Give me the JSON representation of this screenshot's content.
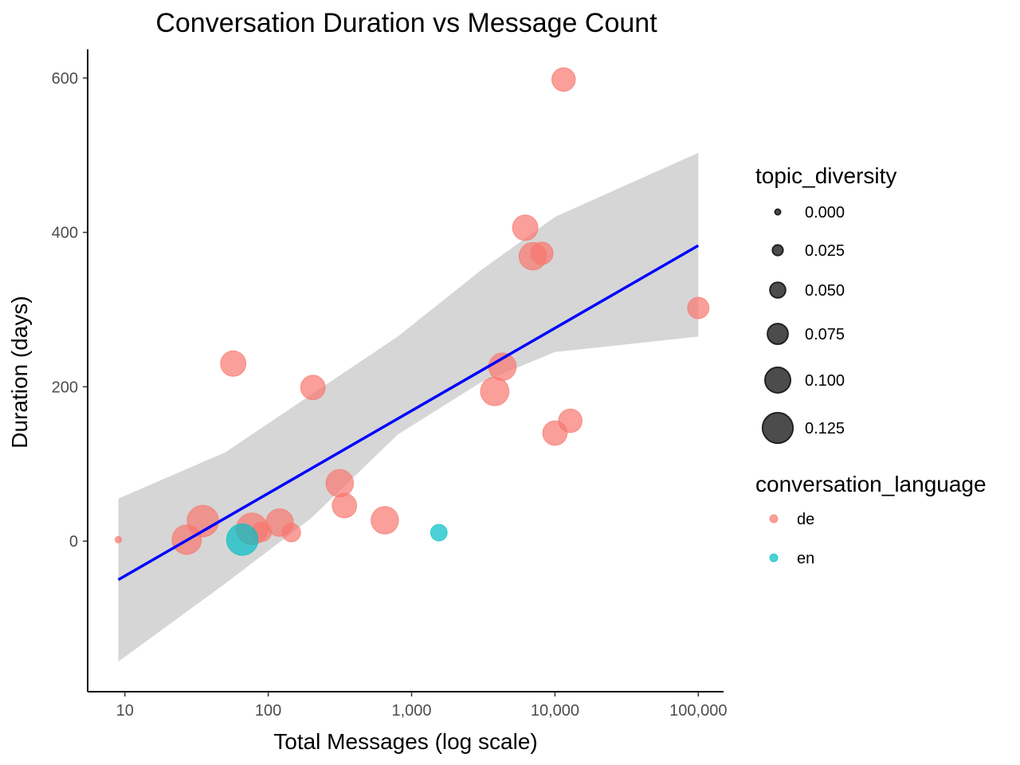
{
  "chart_data": {
    "type": "scatter",
    "title": "Conversation Duration vs Message Count",
    "xlabel": "Total Messages (log scale)",
    "ylabel": "Duration (days)",
    "x_scale": "log10",
    "xlim": [
      5.5,
      150000
    ],
    "ylim": [
      -195,
      637
    ],
    "x_ticks": [
      {
        "value": 10,
        "label": "10"
      },
      {
        "value": 100,
        "label": "100"
      },
      {
        "value": 1000,
        "label": "1,000"
      },
      {
        "value": 10000,
        "label": "10,000"
      },
      {
        "value": 100000,
        "label": "100,000"
      }
    ],
    "y_ticks": [
      {
        "value": 0,
        "label": "0"
      },
      {
        "value": 200,
        "label": "200"
      },
      {
        "value": 400,
        "label": "400"
      },
      {
        "value": 600,
        "label": "600"
      }
    ],
    "grid": false,
    "series": [
      {
        "name": "de",
        "color": "#F8766D",
        "points": [
          {
            "x": 9,
            "y": 2,
            "topic_diversity": 0.005
          },
          {
            "x": 27,
            "y": 2,
            "topic_diversity": 0.12
          },
          {
            "x": 35,
            "y": 26,
            "topic_diversity": 0.13
          },
          {
            "x": 57,
            "y": 230,
            "topic_diversity": 0.1
          },
          {
            "x": 77,
            "y": 16,
            "topic_diversity": 0.13
          },
          {
            "x": 90,
            "y": 12,
            "topic_diversity": 0.07
          },
          {
            "x": 120,
            "y": 24,
            "topic_diversity": 0.11
          },
          {
            "x": 145,
            "y": 11,
            "topic_diversity": 0.065
          },
          {
            "x": 205,
            "y": 199,
            "topic_diversity": 0.095
          },
          {
            "x": 315,
            "y": 75,
            "topic_diversity": 0.11
          },
          {
            "x": 340,
            "y": 46,
            "topic_diversity": 0.095
          },
          {
            "x": 650,
            "y": 27,
            "topic_diversity": 0.11
          },
          {
            "x": 3800,
            "y": 194,
            "topic_diversity": 0.115
          },
          {
            "x": 4300,
            "y": 226,
            "topic_diversity": 0.11
          },
          {
            "x": 6200,
            "y": 406,
            "topic_diversity": 0.1
          },
          {
            "x": 7000,
            "y": 369,
            "topic_diversity": 0.11
          },
          {
            "x": 8100,
            "y": 373,
            "topic_diversity": 0.085
          },
          {
            "x": 10000,
            "y": 140,
            "topic_diversity": 0.095
          },
          {
            "x": 11500,
            "y": 598,
            "topic_diversity": 0.09
          },
          {
            "x": 12800,
            "y": 156,
            "topic_diversity": 0.09
          },
          {
            "x": 100000,
            "y": 302,
            "topic_diversity": 0.08
          }
        ]
      },
      {
        "name": "en",
        "color": "#00BFC4",
        "points": [
          {
            "x": 66,
            "y": 2,
            "topic_diversity": 0.13
          },
          {
            "x": 1550,
            "y": 11,
            "topic_diversity": 0.055
          }
        ]
      }
    ],
    "fit_line": {
      "color": "#0000FF",
      "points": [
        [
          9,
          -50
        ],
        [
          100000,
          383
        ]
      ]
    },
    "confidence_band": {
      "color": "#d6d6d6",
      "upper": [
        [
          9,
          55
        ],
        [
          50,
          115
        ],
        [
          200,
          190
        ],
        [
          800,
          265
        ],
        [
          3000,
          350
        ],
        [
          10000,
          420
        ],
        [
          100000,
          503
        ]
      ],
      "lower": [
        [
          9,
          -156
        ],
        [
          50,
          -55
        ],
        [
          200,
          30
        ],
        [
          800,
          138
        ],
        [
          3000,
          205
        ],
        [
          10000,
          245
        ],
        [
          100000,
          265
        ]
      ]
    },
    "legend": {
      "position": "right",
      "size": {
        "title": "topic_diversity",
        "items": [
          {
            "label": "0.000",
            "value": 0.0
          },
          {
            "label": "0.025",
            "value": 0.025
          },
          {
            "label": "0.050",
            "value": 0.05
          },
          {
            "label": "0.075",
            "value": 0.075
          },
          {
            "label": "0.100",
            "value": 0.1
          },
          {
            "label": "0.125",
            "value": 0.125
          }
        ]
      },
      "color": {
        "title": "conversation_language",
        "items": [
          {
            "label": "de",
            "color": "#F8766D"
          },
          {
            "label": "en",
            "color": "#00BFC4"
          }
        ]
      }
    }
  }
}
